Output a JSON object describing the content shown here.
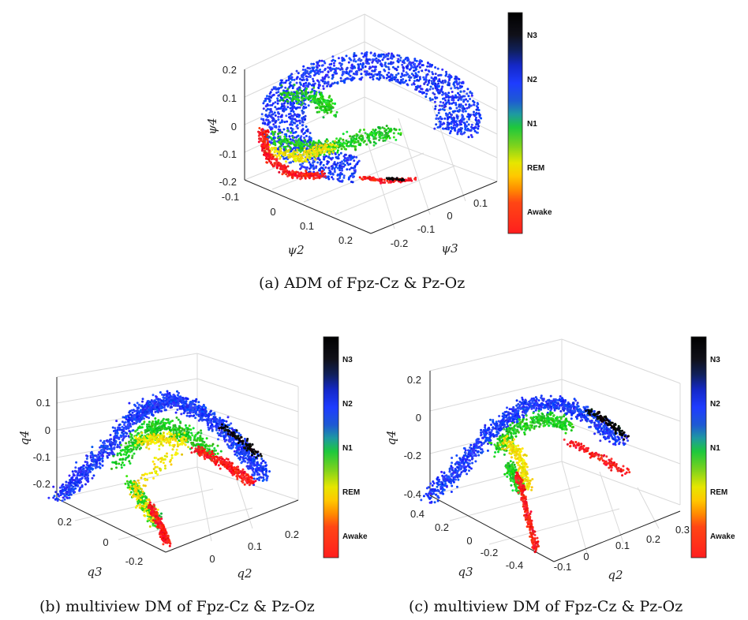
{
  "colorbar_labels": [
    "N3",
    "N2",
    "N1",
    "REM",
    "Awake"
  ],
  "colors": {
    "Awake": "#ff1e1e",
    "REM": "#f0e000",
    "N1": "#22cc22",
    "N2": "#1e3cff",
    "N3": "#000000"
  },
  "chart_data": [
    {
      "type": "scatter",
      "subtype": "scatter3d",
      "caption": "(a) ADM of Fpz-Cz & Pz-Oz",
      "xlabel": "ψ2",
      "ylabel": "ψ3",
      "zlabel": "ψ4",
      "x_ticks": [
        "-0.1",
        "0",
        "0.1",
        "0.2"
      ],
      "y_ticks": [
        "-0.2",
        "-0.1",
        "0",
        "0.1"
      ],
      "z_ticks": [
        "0.2",
        "0.1",
        "0",
        "-0.1",
        "-0.2"
      ],
      "colorbar": [
        "N3",
        "N2",
        "N1",
        "REM",
        "Awake"
      ],
      "point_counts": {
        "N2": 1800,
        "N1": 420,
        "REM": 220,
        "Awake": 330,
        "N3": 30
      }
    },
    {
      "type": "scatter",
      "subtype": "scatter3d",
      "caption": "(b) multiview DM of Fpz-Cz & Pz-Oz",
      "xlabel": "q2",
      "ylabel": "q3",
      "zlabel": "q4",
      "x_ticks": [
        "0",
        "0.1",
        "0.2"
      ],
      "y_ticks": [
        "0.2",
        "0",
        "-0.2"
      ],
      "z_ticks": [
        "0.1",
        "0",
        "-0.1",
        "-0.2"
      ],
      "colorbar": [
        "N3",
        "N2",
        "N1",
        "REM",
        "Awake"
      ],
      "point_counts": {
        "N2": 1600,
        "N1": 500,
        "REM": 320,
        "Awake": 260,
        "N3": 90
      }
    },
    {
      "type": "scatter",
      "subtype": "scatter3d",
      "caption": "(c) multiview DM of Fpz-Cz & Pz-Oz",
      "xlabel": "q2",
      "ylabel": "q3",
      "zlabel": "q4",
      "x_ticks": [
        "-0.1",
        "0",
        "0.1",
        "0.2",
        "0.3"
      ],
      "y_ticks": [
        "0.4",
        "0.2",
        "0",
        "-0.2",
        "-0.4"
      ],
      "z_ticks": [
        "0.2",
        "0",
        "-0.2",
        "-0.4"
      ],
      "colorbar": [
        "N3",
        "N2",
        "N1",
        "REM",
        "Awake"
      ],
      "point_counts": {
        "N2": 1100,
        "N1": 380,
        "REM": 220,
        "Awake": 260,
        "N3": 110
      }
    }
  ]
}
